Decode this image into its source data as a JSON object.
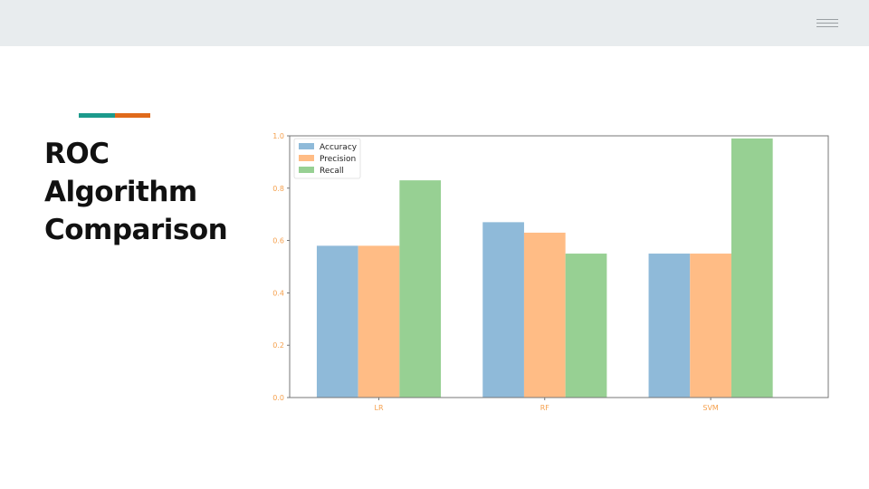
{
  "slide": {
    "title_lines": [
      "ROC",
      "Algorithm",
      "Comparison"
    ],
    "accent_colors": [
      "#1c9a8c",
      "#e06a1b"
    ],
    "menu_icon": "hamburger-icon"
  },
  "chart_data": {
    "type": "bar",
    "categories": [
      "LR",
      "RF",
      "SVM"
    ],
    "series": [
      {
        "name": "Accuracy",
        "values": [
          0.58,
          0.67,
          0.55
        ],
        "color": "#8fbad9"
      },
      {
        "name": "Precision",
        "values": [
          0.58,
          0.63,
          0.55
        ],
        "color": "#ffbc85"
      },
      {
        "name": "Recall",
        "values": [
          0.83,
          0.55,
          0.99
        ],
        "color": "#97d093"
      }
    ],
    "ylim": [
      0,
      1.0
    ],
    "yticks": [
      "0.0",
      "0.2",
      "0.4",
      "0.6",
      "0.8",
      "1.0"
    ],
    "tick_color": "#f5a04d",
    "legend_position": "top-left",
    "grid": false
  }
}
